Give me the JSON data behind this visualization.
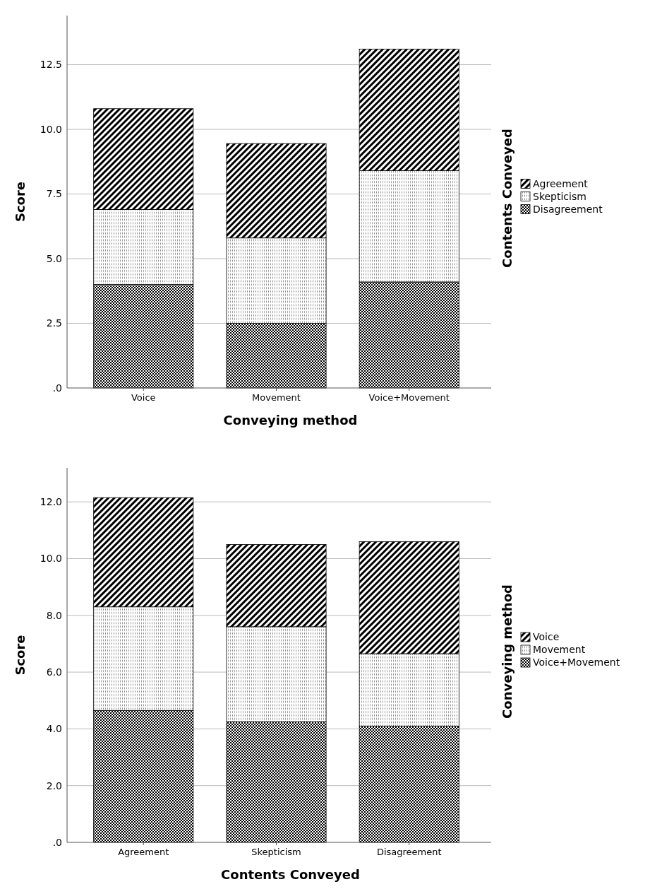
{
  "chart_data": [
    {
      "type": "bar",
      "stacked": true,
      "xlabel": "Conveying method",
      "ylabel": "Score",
      "legend_title": "Contents Conveyed",
      "categories": [
        "Voice",
        "Movement",
        "Voice+Movement"
      ],
      "series": [
        {
          "name": "Disagreement",
          "color": "#000000",
          "values": [
            4.0,
            2.5,
            4.1
          ]
        },
        {
          "name": "Skepticism",
          "color": "#000000",
          "values": [
            2.9,
            3.3,
            4.3
          ]
        },
        {
          "name": "Agreement",
          "color": "#000000",
          "values": [
            3.9,
            3.65,
            4.7
          ]
        }
      ],
      "ylim": [
        0,
        14.4
      ],
      "yticks": [
        {
          "value": 0,
          "label": ".0"
        },
        2.5,
        {
          "value": 5,
          "label": "5.0"
        },
        7.5,
        {
          "value": 10,
          "label": "10.0"
        },
        12.5
      ],
      "grid": "y",
      "legend": "right"
    },
    {
      "type": "bar",
      "stacked": true,
      "xlabel": "Contents Conveyed",
      "ylabel": "Score",
      "legend_title": "Conveying method",
      "categories": [
        "Agreement",
        "Skepticism",
        "Disagreement"
      ],
      "series": [
        {
          "name": "Voice+Movement",
          "color": "#000000",
          "values": [
            4.65,
            4.25,
            4.1
          ]
        },
        {
          "name": "Movement",
          "color": "#000000",
          "values": [
            3.65,
            3.35,
            2.55
          ]
        },
        {
          "name": "Voice",
          "color": "#000000",
          "values": [
            3.85,
            2.9,
            3.95
          ]
        }
      ],
      "ylim": [
        0,
        13.2
      ],
      "yticks": [
        {
          "value": 0,
          "label": ".0"
        },
        {
          "value": 2,
          "label": "2.0"
        },
        {
          "value": 4,
          "label": "4.0"
        },
        {
          "value": 6,
          "label": "6.0"
        },
        {
          "value": 8,
          "label": "8.0"
        },
        {
          "value": 10,
          "label": "10.0"
        },
        {
          "value": 12,
          "label": "12.0"
        }
      ],
      "grid": "y",
      "legend": "right"
    }
  ]
}
